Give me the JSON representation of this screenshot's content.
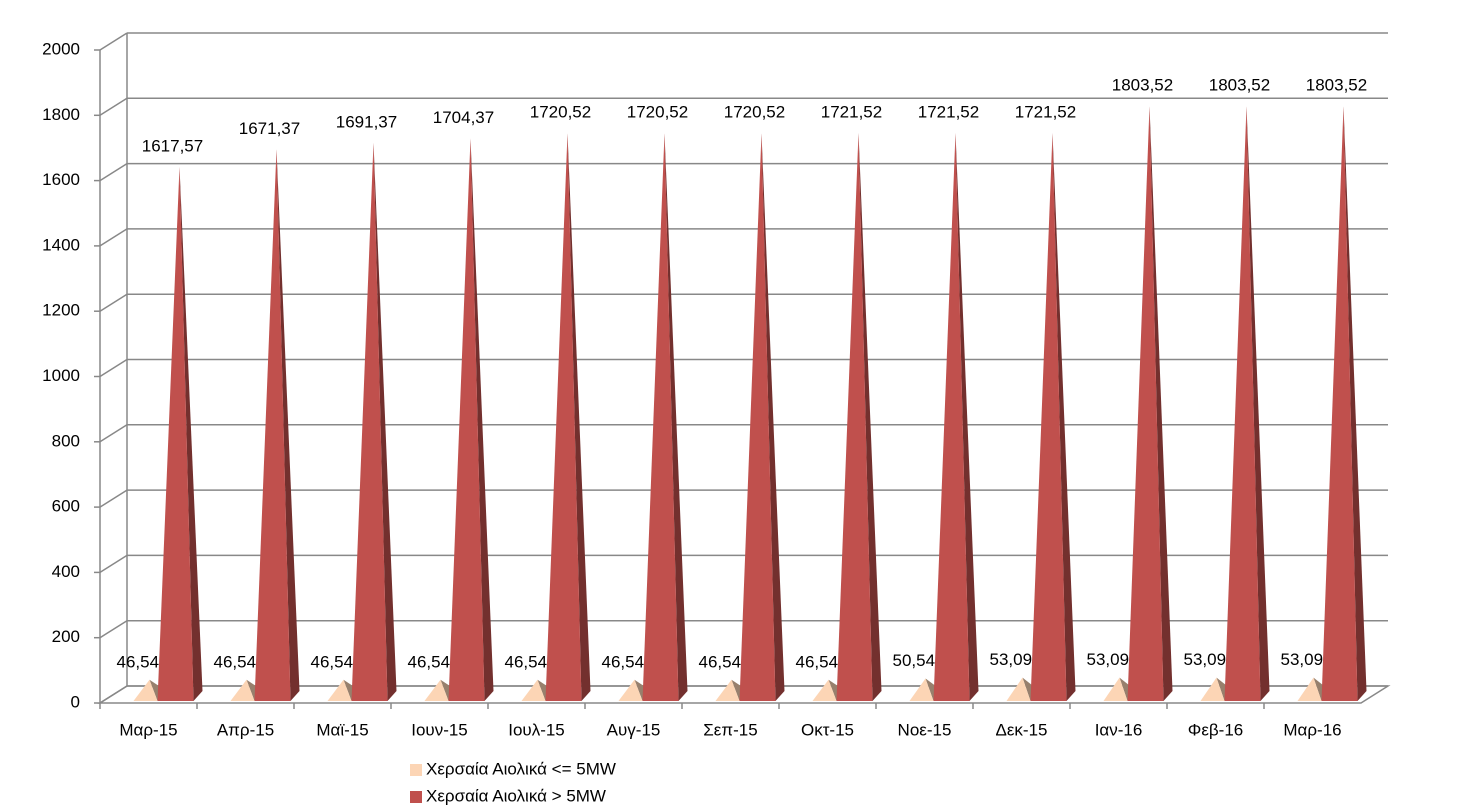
{
  "chart_data": {
    "type": "bar",
    "style": "pyramid-3d",
    "categories": [
      "Μαρ-15",
      "Απρ-15",
      "Μαϊ-15",
      "Ιουν-15",
      "Ιουλ-15",
      "Αυγ-15",
      "Σεπ-15",
      "Οκτ-15",
      "Νοε-15",
      "Δεκ-15",
      "Ιαν-16",
      "Φεβ-16",
      "Μαρ-16"
    ],
    "series": [
      {
        "name": "Χερσαία Αιολικά <= 5MW",
        "color": "#fcd5b5",
        "values": [
          46.545,
          46.545,
          46.545,
          46.545,
          46.545,
          46.545,
          46.545,
          46.545,
          50.545,
          53.095,
          53.095,
          53.095,
          53.095
        ],
        "value_labels": [
          "46,545",
          "46,545",
          "46,545",
          "46,545",
          "46,545",
          "46,545",
          "46,545",
          "46,545",
          "50,545",
          "53,095",
          "53,095",
          "53,095",
          "53,095"
        ]
      },
      {
        "name": "Χερσαία Αιολικά > 5MW",
        "color": "#c0504d",
        "values": [
          1617.57,
          1671.37,
          1691.37,
          1704.37,
          1720.52,
          1720.52,
          1720.52,
          1721.52,
          1721.52,
          1721.52,
          1803.52,
          1803.52,
          1803.52
        ],
        "value_labels": [
          "1617,57",
          "1671,37",
          "1691,37",
          "1704,37",
          "1720,52",
          "1720,52",
          "1720,52",
          "1721,52",
          "1721,52",
          "1721,52",
          "1803,52",
          "1803,52",
          "1803,52"
        ]
      }
    ],
    "ylim": [
      0,
      2000
    ],
    "yticks": [
      0,
      200,
      400,
      600,
      800,
      1000,
      1200,
      1400,
      1600,
      1800,
      2000
    ],
    "grid": true
  }
}
